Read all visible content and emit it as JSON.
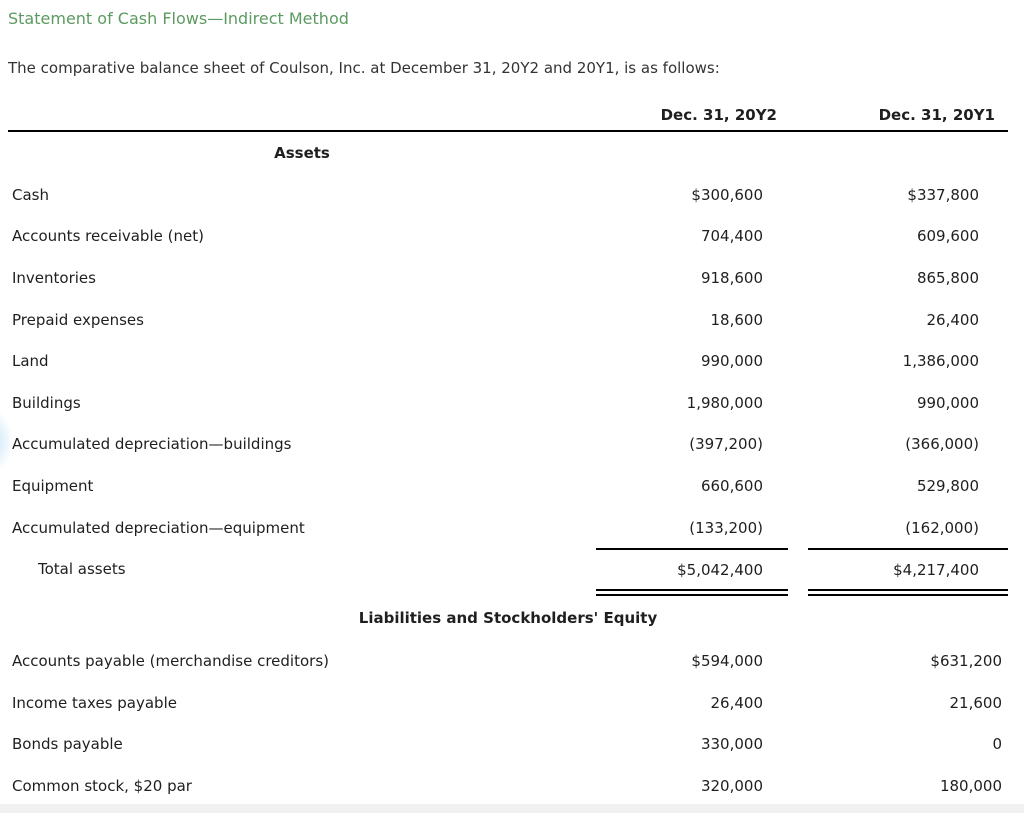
{
  "page": {
    "title": "Statement of Cash Flows—Indirect Method",
    "intro": "The comparative balance sheet of Coulson, Inc. at December 31, 20Y2 and 20Y1, is as follows:"
  },
  "balance_sheet": {
    "column_headers": [
      "Dec. 31, 20Y2",
      "Dec. 31, 20Y1"
    ],
    "sections": [
      {
        "id": "assets",
        "header": "Assets",
        "header_align": "label-center",
        "rows": [
          {
            "label": "Cash",
            "y2": "$300,600",
            "y1": "$337,800"
          },
          {
            "label": "Accounts receivable (net)",
            "y2": "704,400",
            "y1": "609,600"
          },
          {
            "label": "Inventories",
            "y2": "918,600",
            "y1": "865,800"
          },
          {
            "label": "Prepaid expenses",
            "y2": "18,600",
            "y1": "26,400"
          },
          {
            "label": "Land",
            "y2": "990,000",
            "y1": "1,386,000"
          },
          {
            "label": "Buildings",
            "y2": "1,980,000",
            "y1": "990,000"
          },
          {
            "label": "Accumulated depreciation—buildings",
            "y2": "(397,200)",
            "y1": "(366,000)"
          },
          {
            "label": "Equipment",
            "y2": "660,600",
            "y1": "529,800"
          },
          {
            "label": "Accumulated depreciation—equipment",
            "y2": "(133,200)",
            "y1": "(162,000)"
          }
        ],
        "total_row": {
          "label": "Total assets",
          "y2": "$5,042,400",
          "y1": "$4,217,400"
        }
      },
      {
        "id": "liabilities",
        "header": "Liabilities and Stockholders' Equity",
        "header_align": "full-center",
        "rows": [
          {
            "label": "Accounts payable (merchandise creditors)",
            "y2": "$594,000",
            "y1": "$631,200"
          },
          {
            "label": "Income taxes payable",
            "y2": "26,400",
            "y1": "21,600"
          },
          {
            "label": "Bonds payable",
            "y2": "330,000",
            "y1": "0"
          },
          {
            "label": "Common stock, $20 par",
            "y2": "320,000",
            "y1": "180,000"
          }
        ]
      }
    ]
  },
  "colors": {
    "title_green": "#5b9b60",
    "text": "#1f1f1f",
    "intro_text": "#333333",
    "rule": "#000000",
    "bottom_strip": "#f1f1f2"
  }
}
